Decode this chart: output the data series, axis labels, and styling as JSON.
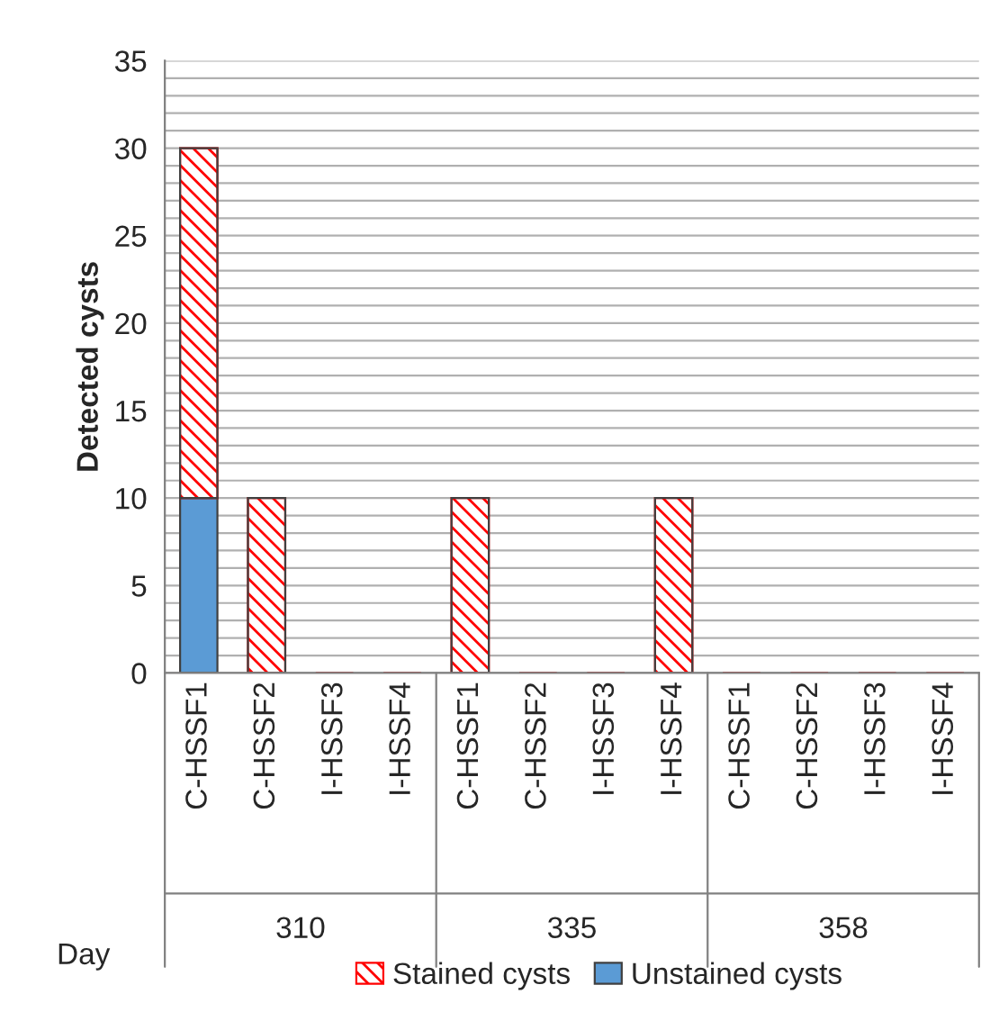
{
  "chart_data": {
    "type": "bar",
    "stacked": true,
    "ylabel": "Detected cysts",
    "xlabel": "Day",
    "categories": [
      "C-HSSF1",
      "C-HSSF2",
      "I-HSSF3",
      "I-HSSF4",
      "C-HSSF1",
      "C-HSSF2",
      "I-HSSF3",
      "I-HSSF4",
      "C-HSSF1",
      "C-HSSF2",
      "I-HSSF3",
      "I-HSSF4"
    ],
    "series": [
      {
        "name": "Unstained cysts",
        "color": "#5b9bd5",
        "values": [
          10,
          0,
          0,
          0,
          0,
          0,
          0,
          0,
          0,
          0,
          0,
          0
        ]
      },
      {
        "name": "Stained cysts",
        "color": "#ff0000",
        "values": [
          20,
          10,
          0,
          0,
          10,
          0,
          0,
          10,
          0,
          0,
          0,
          0
        ]
      }
    ],
    "annotations": [
      "310",
      "335",
      "358"
    ],
    "ylim": [
      0,
      35
    ],
    "yticks": [
      0,
      5,
      10,
      15,
      20,
      25,
      30,
      35
    ],
    "grid": "y",
    "legend": "bottom"
  }
}
